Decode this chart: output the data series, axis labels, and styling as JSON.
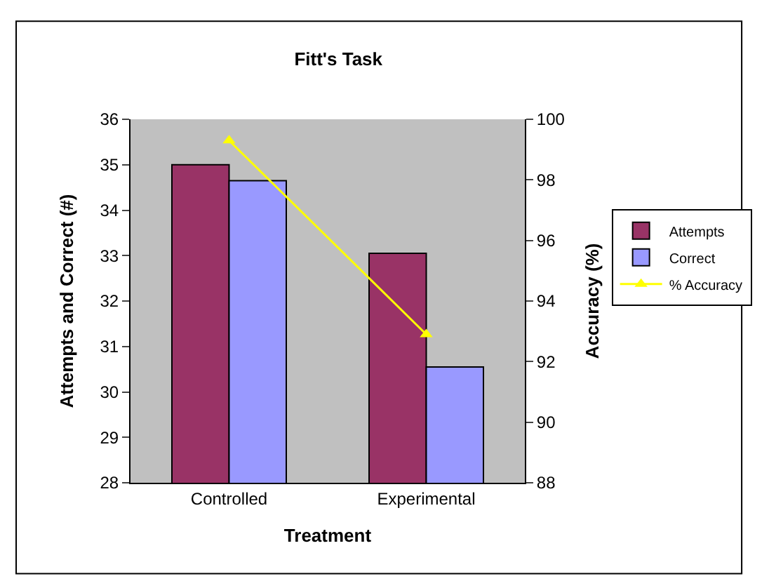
{
  "chart_data": {
    "type": "bar",
    "title": "Fitt's Task",
    "xlabel": "Treatment",
    "ylabel": "Attempts and Correct (#)",
    "y2label": "Accuracy (%)",
    "categories": [
      "Controlled",
      "Experimental"
    ],
    "series": [
      {
        "name": "Attempts",
        "color": "#993366",
        "values": [
          35.0,
          33.05
        ]
      },
      {
        "name": "Correct",
        "color": "#9999ff",
        "values": [
          34.65,
          30.55
        ]
      },
      {
        "name": "% Accuracy",
        "type": "line",
        "axis": "y2",
        "color": "#ffff00",
        "marker": "triangle",
        "values": [
          99.3,
          92.9
        ]
      }
    ],
    "ylim": [
      28,
      36
    ],
    "yticks": [
      28,
      29,
      30,
      31,
      32,
      33,
      34,
      35,
      36
    ],
    "y2lim": [
      88,
      100
    ],
    "y2ticks": [
      88,
      90,
      92,
      94,
      96,
      98,
      100
    ],
    "grid": false,
    "legend": "right"
  }
}
